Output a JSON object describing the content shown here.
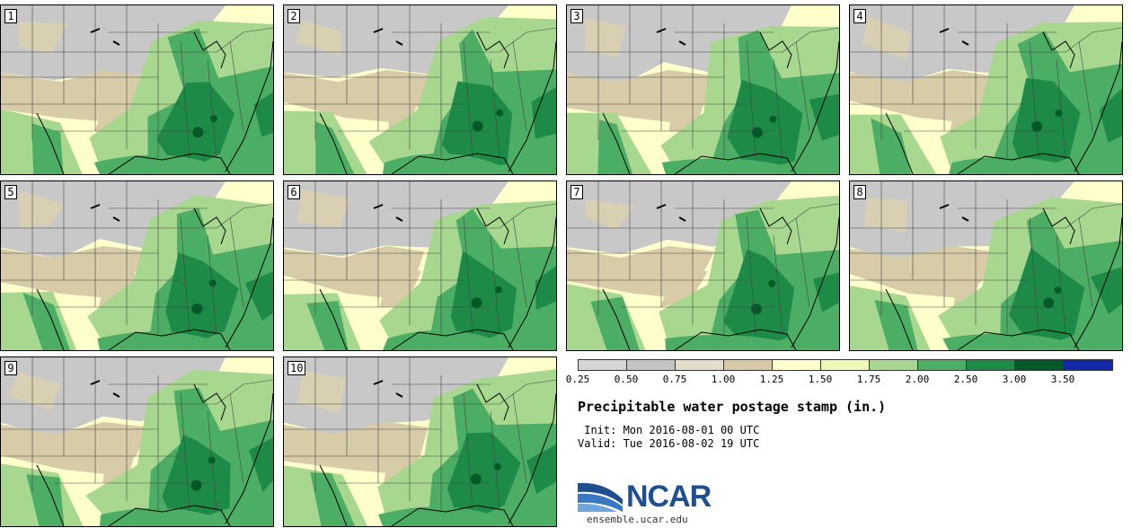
{
  "panels": [
    {
      "label": "1",
      "variant": 0
    },
    {
      "label": "2",
      "variant": 1
    },
    {
      "label": "3",
      "variant": 2
    },
    {
      "label": "4",
      "variant": 3
    },
    {
      "label": "5",
      "variant": 4
    },
    {
      "label": "6",
      "variant": 5
    },
    {
      "label": "7",
      "variant": 6
    },
    {
      "label": "8",
      "variant": 7
    },
    {
      "label": "9",
      "variant": 8
    },
    {
      "label": "10",
      "variant": 9
    }
  ],
  "colorbar": {
    "ticks": [
      "0.25",
      "0.50",
      "0.75",
      "1.00",
      "1.25",
      "1.50",
      "1.75",
      "2.00",
      "2.50",
      "3.00",
      "3.50"
    ],
    "colors": [
      "#d6d6d6",
      "#c4c4c4",
      "#e4dccc",
      "#d8c8a8",
      "#ffffcc",
      "#eef8b8",
      "#a8d890",
      "#4cae64",
      "#1e8a48",
      "#005a28",
      "#1228a8"
    ]
  },
  "title": "Precipitable water postage stamp (in.)",
  "init_line": " Init: Mon 2016-08-01 00 UTC",
  "valid_line": "Valid: Tue 2016-08-02 19 UTC",
  "logo": {
    "name": "NCAR",
    "url": "ensemble.ucar.edu"
  }
}
